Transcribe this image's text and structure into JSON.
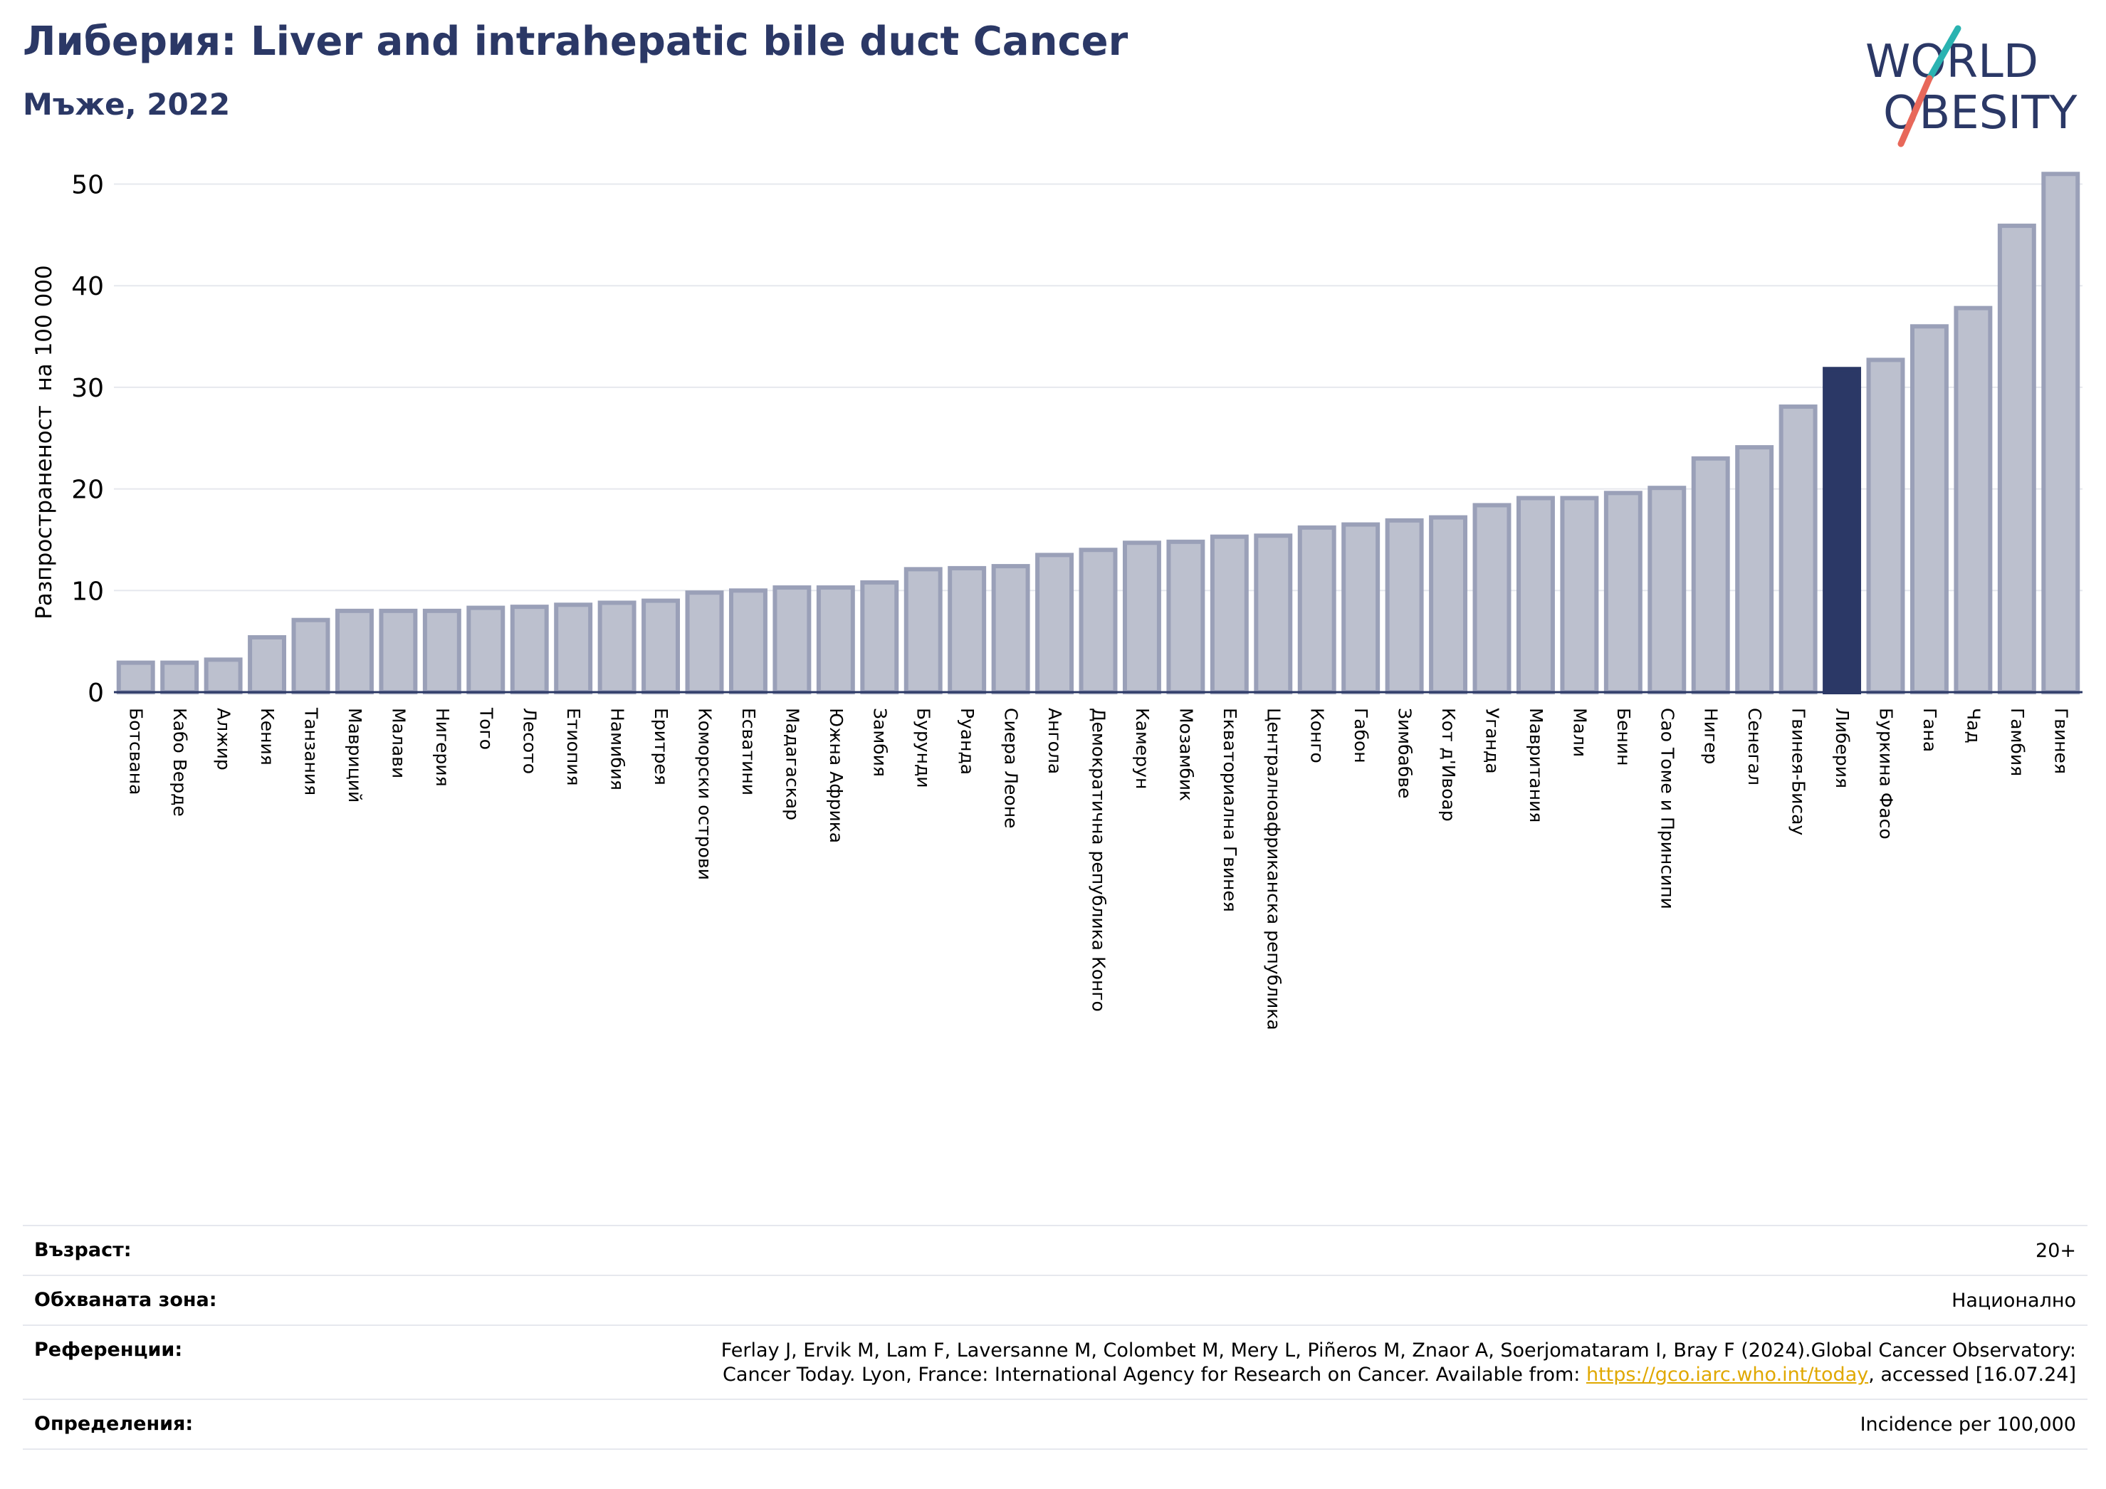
{
  "header": {
    "title": "Либерия: Liver and intrahepatic bile duct Cancer",
    "subtitle": "Мъже, 2022"
  },
  "logo": {
    "line1": "WORLD",
    "line2": "OBESITY",
    "color_text": "#2b3866",
    "color_slash_top": "#2ab3b1",
    "color_slash_bottom": "#e8685a"
  },
  "colors": {
    "bar_fill": "#bcc0ce",
    "bar_stroke": "#9aa0b8",
    "highlight": "#2b3866",
    "grid": "#e6e8ee",
    "axis": "#2b3866"
  },
  "chart_data": {
    "type": "bar",
    "ylabel": "Разпространеност  на 100 000",
    "ylim": [
      0,
      52
    ],
    "yticks": [
      0,
      10,
      20,
      30,
      40,
      50
    ],
    "highlight": "Либерия",
    "categories": [
      "Ботсвана",
      "Кабо Верде",
      "Алжир",
      "Кения",
      "Танзания",
      "Мавриций",
      "Малави",
      "Нигерия",
      "Того",
      "Лесото",
      "Етиопия",
      "Намибия",
      "Еритрея",
      "Коморски острови",
      "Есватини",
      "Мадагаскар",
      "Южна Африка",
      "Замбия",
      "Бурунди",
      "Руанда",
      "Сиера Леоне",
      "Ангола",
      "Демократична република Конго",
      "Камерун",
      "Мозамбик",
      "Екваториална Гвинея",
      "Централноафриканска република",
      "Конго",
      "Габон",
      "Зимбабве",
      "Кот д'Ивоар",
      "Уганда",
      "Мавритания",
      "Мали",
      "Бенин",
      "Сао Томе и Принсипи",
      "Нигер",
      "Сенегал",
      "Гвинея-Бисау",
      "Либерия",
      "Буркина Фасо",
      "Гана",
      "Чад",
      "Гамбия",
      "Гвинея"
    ],
    "values": [
      2.9,
      2.9,
      3.2,
      5.4,
      7.1,
      8.0,
      8.0,
      8.0,
      8.3,
      8.4,
      8.6,
      8.8,
      9.0,
      9.8,
      10.0,
      10.3,
      10.3,
      10.8,
      12.1,
      12.2,
      12.4,
      13.5,
      14.0,
      14.7,
      14.8,
      15.3,
      15.4,
      16.2,
      16.5,
      16.9,
      17.2,
      18.4,
      19.1,
      19.1,
      19.6,
      20.1,
      23.0,
      24.1,
      28.1,
      31.8,
      32.7,
      36.0,
      37.8,
      45.9,
      51.0
    ]
  },
  "footer": {
    "age_label": "Възраст:",
    "age_value": "20+",
    "coverage_label": "Обхваната зона:",
    "coverage_value": "Национално",
    "references_label": "Референции:",
    "references_line1": "Ferlay J, Ervik M, Lam F, Laversanne M, Colombet M, Mery L, Piñeros M, Znaor A, Soerjomataram I, Bray F (2024).Global Cancer Observatory:",
    "references_line2_pre": "Cancer Today. Lyon, France: International Agency for Research on Cancer. Available from: ",
    "references_link": "https://gco.iarc.who.int/today",
    "references_line2_post": ", accessed [16.07.24]",
    "definitions_label": "Определения:",
    "definitions_value": "Incidence per 100,000"
  }
}
